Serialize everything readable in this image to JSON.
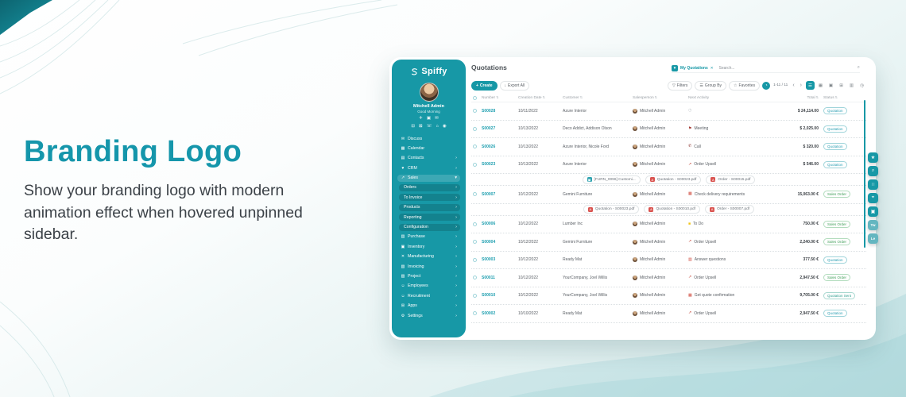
{
  "hero": {
    "title": "Branding Logo",
    "description": "Show your branding logo with modern animation effect when hovered unpinned sidebar."
  },
  "colors": {
    "accent": "#1798a6",
    "heading": "#1596ab",
    "quotation": "#2b9fb3",
    "sales_order": "#3f9e58",
    "quotation_sent": "#2f9e8f",
    "link": "#1f9fb0"
  },
  "glyphs": {
    "search": "⌕",
    "filter": "▼",
    "close": "✕",
    "plus": "+",
    "download": "↓",
    "funnel": "▽",
    "list": "☰",
    "star": "☆",
    "clock": "◔",
    "prev": "‹",
    "next": "›",
    "sort": "⇅",
    "dots": "⋮",
    "pdf": "A",
    "image": "▣"
  },
  "sidebar": {
    "brand": "Spiffy",
    "user": {
      "name": "Mitchell Admin",
      "greeting": "Good Morning"
    },
    "quick_icons_row1": [
      {
        "name": "plane-icon",
        "glyph": "✈"
      },
      {
        "name": "inbox-icon",
        "glyph": "▣"
      },
      {
        "name": "mail-icon",
        "glyph": "✉"
      }
    ],
    "quick_icons_row2": [
      {
        "name": "car-icon",
        "glyph": "⊟"
      },
      {
        "name": "tag-icon",
        "glyph": "⊠"
      },
      {
        "name": "phone-icon",
        "glyph": "☏"
      },
      {
        "name": "lock-icon",
        "glyph": "⌂"
      },
      {
        "name": "location-icon",
        "glyph": "◉"
      }
    ],
    "menu": [
      {
        "label": "Discuss",
        "icon": "discuss-icon",
        "glyph": "✉"
      },
      {
        "label": "Calendar",
        "icon": "calendar-icon",
        "glyph": "▦"
      },
      {
        "label": "Contacts",
        "icon": "contacts-icon",
        "glyph": "▤",
        "chevron": true
      },
      {
        "label": "CRM",
        "icon": "crm-icon",
        "glyph": "♥",
        "chevron": true
      },
      {
        "label": "Sales",
        "icon": "sales-icon",
        "glyph": "↗",
        "expanded": true,
        "active": true
      },
      {
        "label": "Orders",
        "sub": true,
        "chevron": true
      },
      {
        "label": "To Invoice",
        "sub": true,
        "chevron": true
      },
      {
        "label": "Products",
        "sub": true,
        "chevron": true
      },
      {
        "label": "Reporting",
        "sub": true,
        "chevron": true
      },
      {
        "label": "Configuration",
        "sub": true,
        "chevron": true
      },
      {
        "label": "Purchase",
        "icon": "purchase-icon",
        "glyph": "▥",
        "chevron": true
      },
      {
        "label": "Inventory",
        "icon": "inventory-icon",
        "glyph": "▣",
        "chevron": true
      },
      {
        "label": "Manufacturing",
        "icon": "manufacturing-icon",
        "glyph": "✕",
        "chevron": true
      },
      {
        "label": "Invoicing",
        "icon": "invoicing-icon",
        "glyph": "▧",
        "chevron": true
      },
      {
        "label": "Project",
        "icon": "project-icon",
        "glyph": "▨",
        "chevron": true
      },
      {
        "label": "Employees",
        "icon": "employees-icon",
        "glyph": "☺",
        "chevron": true
      },
      {
        "label": "Recruitment",
        "icon": "recruitment-icon",
        "glyph": "☺",
        "chevron": true
      },
      {
        "label": "Apps",
        "icon": "apps-icon",
        "glyph": "⊞",
        "chevron": true
      },
      {
        "label": "Settings",
        "icon": "settings-icon",
        "glyph": "⚙",
        "chevron": true
      }
    ]
  },
  "header": {
    "title": "Quotations",
    "filter_chip": "My Quotations",
    "search_placeholder": "Search...",
    "create_label": "Create",
    "export_label": "Export All",
    "filters_label": "Filters",
    "groupby_label": "Group By",
    "favorites_label": "Favorites",
    "pagination": "1-11 / 11"
  },
  "views": [
    {
      "name": "list-view-icon",
      "glyph": "☰",
      "active": true
    },
    {
      "name": "kanban-view-icon",
      "glyph": "▦",
      "active": false
    },
    {
      "name": "calendar-view-icon",
      "glyph": "▣",
      "active": false
    },
    {
      "name": "pivot-view-icon",
      "glyph": "⊞",
      "active": false
    },
    {
      "name": "graph-view-icon",
      "glyph": "▥",
      "active": false
    },
    {
      "name": "activity-view-icon",
      "glyph": "◷",
      "active": false
    }
  ],
  "table": {
    "columns": [
      {
        "label": "Number",
        "sort": true
      },
      {
        "label": "Creation Date",
        "sort": true
      },
      {
        "label": "Customer",
        "sort": true
      },
      {
        "label": "Salesperson",
        "sort": true
      },
      {
        "label": "Next Activity",
        "sort": false
      },
      {
        "label": "Total",
        "sort": true,
        "align": "right"
      },
      {
        "label": "Status",
        "sort": true
      }
    ],
    "rows": [
      {
        "number": "S00028",
        "date": "10/11/2022",
        "customer": "Azure Interior",
        "salesperson": "Mitchell Admin",
        "activity": {
          "label": "",
          "glyph": "◷",
          "color": "#c2c7cc"
        },
        "total": "$ 24,114.00",
        "status": "Quotation"
      },
      {
        "number": "S00027",
        "date": "10/13/2022",
        "customer": "Deco Addict, Addison Olson",
        "salesperson": "Mitchell Admin",
        "activity": {
          "label": "Meeting",
          "glyph": "⚑",
          "color": "#a3352f"
        },
        "total": "$ 2,025.00",
        "status": "Quotation"
      },
      {
        "number": "S00026",
        "date": "10/13/2022",
        "customer": "Azure Interior, Nicole Ford",
        "salesperson": "Mitchell Admin",
        "activity": {
          "label": "Call",
          "glyph": "✆",
          "color": "#8a2f2a"
        },
        "total": "$ 320.00",
        "status": "Quotation"
      },
      {
        "number": "S00023",
        "date": "10/13/2022",
        "customer": "Azure Interior",
        "salesperson": "Mitchell Admin",
        "activity": {
          "label": "Order Upsell",
          "glyph": "↗",
          "color": "#c0392b"
        },
        "total": "$ 546.00",
        "status": "Quotation",
        "attachments": [
          {
            "type": "img",
            "label": "[FURN_0096] Customi..."
          },
          {
            "type": "pdf",
            "label": "Quotation - S00023.pdf"
          },
          {
            "type": "pdf",
            "label": "Order - S00015.pdf"
          }
        ]
      },
      {
        "number": "S00007",
        "date": "10/12/2022",
        "customer": "Gemini Furniture",
        "salesperson": "Mitchell Admin",
        "activity": {
          "label": "Check delivery requirements",
          "glyph": "▦",
          "color": "#cf4a3d"
        },
        "total": "15,063.00 €",
        "status": "Sales Order",
        "attachments": [
          {
            "type": "pdf",
            "label": "Quotation - S00023.pdf"
          },
          {
            "type": "pdf",
            "label": "Quotation - S00010.pdf"
          },
          {
            "type": "pdf",
            "label": "Order - S00007.pdf"
          }
        ]
      },
      {
        "number": "S00006",
        "date": "10/12/2022",
        "customer": "Lumber Inc",
        "salesperson": "Mitchell Admin",
        "activity": {
          "label": "To Do",
          "glyph": "■",
          "color": "#f0c419"
        },
        "total": "750.00 €",
        "status": "Sales Order"
      },
      {
        "number": "S00004",
        "date": "10/12/2022",
        "customer": "Gemini Furniture",
        "salesperson": "Mitchell Admin",
        "activity": {
          "label": "Order Upsell",
          "glyph": "↗",
          "color": "#c0392b"
        },
        "total": "2,240.00 €",
        "status": "Sales Order"
      },
      {
        "number": "S00003",
        "date": "10/12/2022",
        "customer": "Ready Mat",
        "salesperson": "Mitchell Admin",
        "activity": {
          "label": "Answer questions",
          "glyph": "▥",
          "color": "#cf4a3d"
        },
        "total": "377.50 €",
        "status": "Quotation"
      },
      {
        "number": "S00011",
        "date": "10/12/2022",
        "customer": "YourCompany, Joel Willis",
        "salesperson": "Mitchell Admin",
        "activity": {
          "label": "Order Upsell",
          "glyph": "↗",
          "color": "#c0392b"
        },
        "total": "2,947.50 €",
        "status": "Sales Order"
      },
      {
        "number": "S00010",
        "date": "10/12/2022",
        "customer": "YourCompany, Joel Willis",
        "salesperson": "Mitchell Admin",
        "activity": {
          "label": "Get quote confirmation",
          "glyph": "▦",
          "color": "#cf4a3d"
        },
        "total": "9,705.00 €",
        "status": "Quotation Sent"
      },
      {
        "number": "S00002",
        "date": "10/10/2022",
        "customer": "Ready Mat",
        "salesperson": "Mitchell Admin",
        "activity": {
          "label": "Order Upsell",
          "glyph": "↗",
          "color": "#c0392b"
        },
        "total": "2,947.50 €",
        "status": "Quotation"
      }
    ]
  },
  "rail": [
    {
      "name": "star-rail-icon",
      "glyph": "★",
      "light": false
    },
    {
      "name": "search-rail-icon",
      "glyph": "⌕",
      "light": false
    },
    {
      "name": "grid-rail-icon",
      "glyph": "∷",
      "light": false
    },
    {
      "name": "zoom-rail-icon",
      "glyph": "⌖",
      "light": false
    },
    {
      "name": "card-rail-icon",
      "glyph": "▣",
      "light": false
    },
    {
      "name": "tw-rail-icon",
      "glyph": "Tw",
      "light": true
    },
    {
      "name": "le-rail-icon",
      "glyph": "Le",
      "light": true
    }
  ]
}
